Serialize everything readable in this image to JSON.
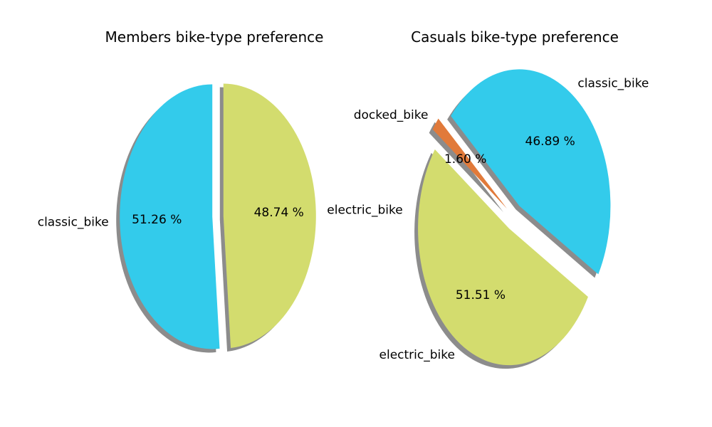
{
  "chart_data": [
    {
      "type": "pie",
      "title": "Members bike-type preference",
      "slices": [
        {
          "label": "classic_bike",
          "value": 51.26,
          "pct_text": "51.26 %",
          "color": "#33CBEB",
          "exploded": true
        },
        {
          "label": "electric_bike",
          "value": 48.74,
          "pct_text": "48.74 %",
          "color": "#D3DC6E",
          "exploded": true
        }
      ],
      "shadow": true
    },
    {
      "type": "pie",
      "title": "Casuals bike-type preference",
      "slices": [
        {
          "label": "classic_bike",
          "value": 46.89,
          "pct_text": "46.89 %",
          "color": "#33CBEB",
          "exploded": true
        },
        {
          "label": "docked_bike",
          "value": 1.6,
          "pct_text": "1.60 %",
          "color": "#E17A3A",
          "exploded": true
        },
        {
          "label": "electric_bike",
          "value": 51.51,
          "pct_text": "51.51 %",
          "color": "#D3DC6E",
          "exploded": true
        }
      ],
      "shadow": true
    }
  ]
}
